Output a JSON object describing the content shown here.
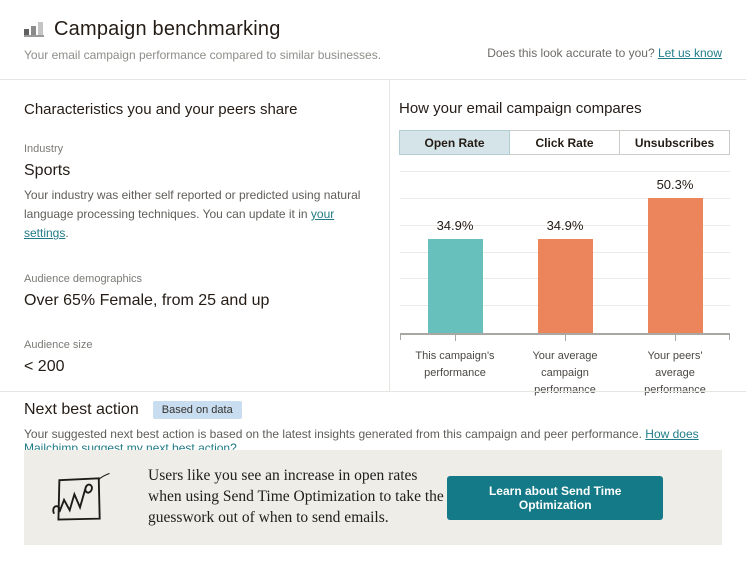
{
  "header": {
    "title": "Campaign benchmarking",
    "subtitle": "Your email campaign performance compared to similar businesses.",
    "accuracy_prompt": "Does this look accurate to you? ",
    "accuracy_link": "Let us know"
  },
  "characteristics": {
    "heading": "Characteristics you and your peers share",
    "industry_label": "Industry",
    "industry_value": "Sports",
    "industry_note_before": "Your industry was either self reported or predicted using natural language processing techniques. You can update it in ",
    "industry_note_link": "your settings",
    "industry_note_after": ".",
    "demographics_label": "Audience demographics",
    "demographics_value": "Over 65% Female, from 25 and up",
    "size_label": "Audience size",
    "size_value": "< 200"
  },
  "compare": {
    "heading": "How your email campaign compares",
    "tabs": [
      {
        "label": "Open Rate",
        "selected": true
      },
      {
        "label": "Click Rate",
        "selected": false
      },
      {
        "label": "Unsubscribes",
        "selected": false
      }
    ]
  },
  "chart_data": {
    "type": "bar",
    "title": "How your email campaign compares",
    "categories": [
      "This campaign's performance",
      "Your average campaign performance",
      "Your peers' average performance"
    ],
    "values": [
      34.9,
      34.9,
      50.3
    ],
    "value_labels": [
      "34.9%",
      "34.9%",
      "50.3%"
    ],
    "colors": [
      "#68c0bd",
      "#ec855b",
      "#ec855b"
    ],
    "xlabel": "",
    "ylabel": "",
    "ylim": [
      0,
      60
    ],
    "grid_step": 10,
    "grid": "on",
    "legend": "none"
  },
  "next_best": {
    "heading": "Next best action",
    "badge": "Based on data",
    "description": "Your suggested next best action is based on the latest insights generated from this campaign and peer performance. ",
    "description_link": "How does Mailchimp suggest my next best action?"
  },
  "action_card": {
    "message": "Users like you see an increase in open rates when using Send Time Optimization to take the guesswork out of when to send emails.",
    "button_label": "Learn about Send Time Optimization"
  },
  "colors": {
    "teal_bar": "#68c0bd",
    "orange_bar": "#ec855b",
    "button_teal": "#147a87",
    "link_teal": "#227c88",
    "badge_blue": "#c9ddf0",
    "tab_selected": "#d4e4e9",
    "card_gray": "#eeede8"
  }
}
